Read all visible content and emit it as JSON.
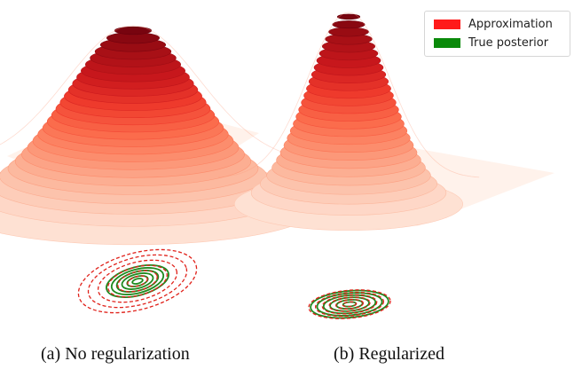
{
  "chart_data": [
    {
      "type": "surface",
      "panel": "(a) No regularization",
      "surface": {
        "peak_height": 1.0,
        "spread_x": 1.25,
        "spread_y": 1.05,
        "colormap": "Reds"
      },
      "contours": {
        "approximation": {
          "style": "dashed",
          "color": "#e0221b",
          "levels": 6,
          "scale": 1.9,
          "tilt_deg": -15
        },
        "true_posterior": {
          "style": "solid",
          "color": "#1f8a1f",
          "levels": 6,
          "scale": 1.0,
          "tilt_deg": -15
        }
      }
    },
    {
      "type": "surface",
      "panel": "(b) Regularized",
      "surface": {
        "peak_height": 1.0,
        "spread_x": 0.85,
        "spread_y": 0.8,
        "colormap": "Reds"
      },
      "contours": {
        "approximation": {
          "style": "dashed",
          "color": "#e0221b",
          "levels": 6,
          "scale": 1.05,
          "tilt_deg": -5
        },
        "true_posterior": {
          "style": "solid",
          "color": "#1f8a1f",
          "levels": 6,
          "scale": 1.0,
          "tilt_deg": -5
        }
      }
    }
  ],
  "legend": {
    "items": [
      {
        "label": "Approximation",
        "color": "#ff1a1a"
      },
      {
        "label": "True posterior",
        "color": "#0a8a0a"
      }
    ]
  },
  "captions": {
    "a": "(a) No regularization",
    "b": "(b) Regularized"
  }
}
